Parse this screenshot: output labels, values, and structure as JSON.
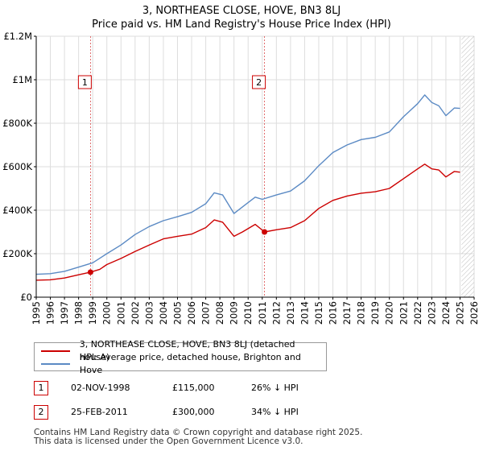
{
  "header": {
    "title_line1": "3, NORTHEASE CLOSE, HOVE, BN3 8LJ",
    "title_line2": "Price paid vs. HM Land Registry's House Price Index (HPI)"
  },
  "colors": {
    "property": "#cc0000",
    "hpi": "#5b8ac4",
    "grid": "#dddddd",
    "future_hatch": "#bbbbbb"
  },
  "chart_data": {
    "type": "line",
    "xlim": [
      1995,
      2026
    ],
    "ylim": [
      0,
      1200000
    ],
    "x_ticks": [
      "1995",
      "1996",
      "1997",
      "1998",
      "1999",
      "2000",
      "2001",
      "2002",
      "2003",
      "2004",
      "2005",
      "2006",
      "2007",
      "2008",
      "2009",
      "2010",
      "2011",
      "2012",
      "2013",
      "2014",
      "2015",
      "2016",
      "2017",
      "2018",
      "2019",
      "2020",
      "2021",
      "2022",
      "2023",
      "2024",
      "2025",
      "2026"
    ],
    "y_ticks": [
      {
        "value": 0,
        "label": "£0"
      },
      {
        "value": 200000,
        "label": "£200K"
      },
      {
        "value": 400000,
        "label": "£400K"
      },
      {
        "value": 600000,
        "label": "£600K"
      },
      {
        "value": 800000,
        "label": "£800K"
      },
      {
        "value": 1000000,
        "label": "£1M"
      },
      {
        "value": 1200000,
        "label": "£1.2M"
      }
    ],
    "future_from": 2025.1,
    "series": [
      {
        "name": "3, NORTHEASE CLOSE, HOVE, BN3 8LJ (detached house)",
        "color": "#cc0000",
        "points": [
          [
            1995,
            78000
          ],
          [
            1996,
            80000
          ],
          [
            1997,
            88000
          ],
          [
            1998,
            103000
          ],
          [
            1998.84,
            115000
          ],
          [
            1999.5,
            128000
          ],
          [
            2000,
            150000
          ],
          [
            2001,
            178000
          ],
          [
            2002,
            210000
          ],
          [
            2003,
            240000
          ],
          [
            2004,
            268000
          ],
          [
            2005,
            280000
          ],
          [
            2006,
            290000
          ],
          [
            2007,
            320000
          ],
          [
            2007.6,
            355000
          ],
          [
            2008.2,
            345000
          ],
          [
            2009,
            280000
          ],
          [
            2009.6,
            300000
          ],
          [
            2010.5,
            335000
          ],
          [
            2011.16,
            300000
          ],
          [
            2012,
            310000
          ],
          [
            2013,
            320000
          ],
          [
            2014,
            352000
          ],
          [
            2015,
            408000
          ],
          [
            2016,
            445000
          ],
          [
            2017,
            465000
          ],
          [
            2018,
            478000
          ],
          [
            2019,
            485000
          ],
          [
            2020,
            500000
          ],
          [
            2021,
            545000
          ],
          [
            2022,
            590000
          ],
          [
            2022.5,
            612000
          ],
          [
            2023,
            590000
          ],
          [
            2023.5,
            585000
          ],
          [
            2024,
            553000
          ],
          [
            2024.6,
            578000
          ],
          [
            2025,
            575000
          ]
        ]
      },
      {
        "name": "HPI: Average price, detached house, Brighton and Hove",
        "color": "#5b8ac4",
        "points": [
          [
            1995,
            105000
          ],
          [
            1996,
            108000
          ],
          [
            1997,
            119000
          ],
          [
            1998,
            138000
          ],
          [
            1999,
            158000
          ],
          [
            2000,
            200000
          ],
          [
            2001,
            240000
          ],
          [
            2002,
            288000
          ],
          [
            2003,
            325000
          ],
          [
            2004,
            352000
          ],
          [
            2005,
            370000
          ],
          [
            2006,
            390000
          ],
          [
            2007,
            430000
          ],
          [
            2007.6,
            480000
          ],
          [
            2008.2,
            470000
          ],
          [
            2009,
            385000
          ],
          [
            2009.6,
            415000
          ],
          [
            2010.5,
            460000
          ],
          [
            2011,
            450000
          ],
          [
            2012,
            470000
          ],
          [
            2013,
            488000
          ],
          [
            2014,
            535000
          ],
          [
            2015,
            605000
          ],
          [
            2016,
            665000
          ],
          [
            2017,
            700000
          ],
          [
            2018,
            725000
          ],
          [
            2019,
            735000
          ],
          [
            2020,
            760000
          ],
          [
            2021,
            830000
          ],
          [
            2022,
            890000
          ],
          [
            2022.5,
            930000
          ],
          [
            2023,
            895000
          ],
          [
            2023.5,
            880000
          ],
          [
            2024,
            835000
          ],
          [
            2024.6,
            870000
          ],
          [
            2025,
            868000
          ]
        ]
      }
    ],
    "sales": [
      {
        "label": "1",
        "x": 1998.84,
        "y": 115000
      },
      {
        "label": "2",
        "x": 2011.16,
        "y": 300000
      }
    ]
  },
  "legend": {
    "property_label": "3, NORTHEASE CLOSE, HOVE, BN3 8LJ (detached house)",
    "hpi_label": "HPI: Average price, detached house, Brighton and Hove"
  },
  "transactions": [
    {
      "label": "1",
      "date": "02-NOV-1998",
      "price": "£115,000",
      "diff": "26% ↓ HPI"
    },
    {
      "label": "2",
      "date": "25-FEB-2011",
      "price": "£300,000",
      "diff": "34% ↓ HPI"
    }
  ],
  "footer": {
    "line1": "Contains HM Land Registry data © Crown copyright and database right 2025.",
    "line2": "This data is licensed under the Open Government Licence v3.0."
  }
}
